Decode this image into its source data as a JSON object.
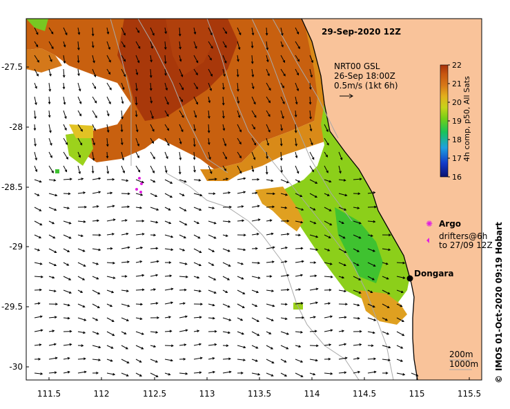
{
  "title": "29-Sep-2020 12Z",
  "current_legend": {
    "line1": "NRT00 GSL",
    "line2": "26-Sep 18:00Z",
    "line3": "0.5m/s (1kt 6h)"
  },
  "colorbar": {
    "label": "4h comp, p50, All Sats",
    "ticks": [
      "22",
      "21",
      "20",
      "19",
      "18",
      "17",
      "16"
    ],
    "min": 16,
    "max": 22,
    "colors": [
      "#0b1170",
      "#1339c8",
      "#1ea0e0",
      "#19c35a",
      "#73cf17",
      "#c6d418",
      "#e3b01c",
      "#d77718",
      "#c8560f",
      "#a6300a"
    ]
  },
  "legend": {
    "argo_label": "Argo",
    "drifters_line1": "drifters@6h",
    "drifters_line2": "to 27/09 12Z"
  },
  "place": {
    "name": "Dongara"
  },
  "scale_labels": {
    "depth1": "200m",
    "depth2": "1000m"
  },
  "credit": "IMOS 01-Oct-2020 09:19 Hobart",
  "copyright_symbol": "©",
  "x_axis_ticks": [
    "111.5",
    "112",
    "112.5",
    "113",
    "113.5",
    "114",
    "114.5",
    "115",
    "115.5"
  ],
  "y_axis_ticks": [
    "-27.5",
    "-28",
    "-28.5",
    "-29",
    "-29.5",
    "-30"
  ],
  "colors": {
    "land": "#f9c39a",
    "coast": "#000000",
    "bathy": "#a9a9a9",
    "argo": "#e020e0"
  }
}
